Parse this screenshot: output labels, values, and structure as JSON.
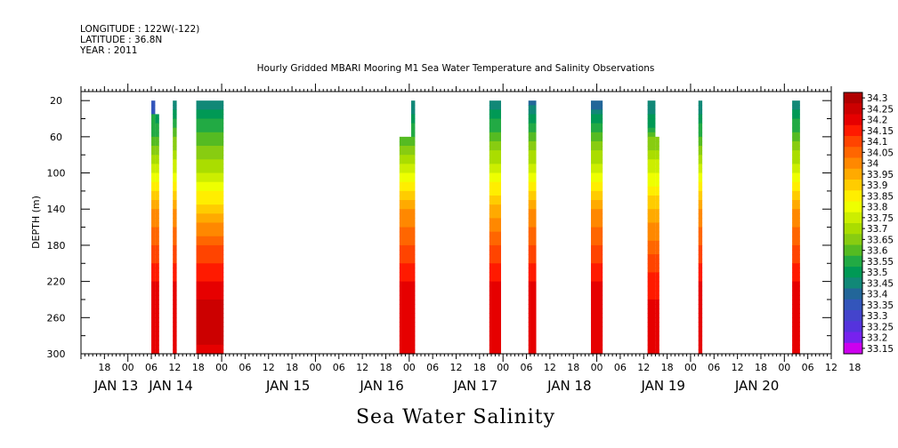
{
  "header": {
    "longitude": "LONGITUDE : 122W(-122)",
    "latitude": "LATITUDE : 36.8N",
    "year": "YEAR : 2011"
  },
  "chart_data": {
    "type": "heatmap",
    "title": "Hourly Gridded MBARI Mooring M1 Sea Water Temperature and Salinity Observations",
    "ylabel": "DEPTH (m)",
    "footer": "Sea Water Salinity",
    "x_range_hours": [
      -6,
      186
    ],
    "ylim": [
      300,
      10
    ],
    "y_ticks": [
      20,
      60,
      100,
      140,
      180,
      220,
      260,
      300
    ],
    "x_tick_labels": [
      {
        "h": 0,
        "label": "18"
      },
      {
        "h": 6,
        "label": "00"
      },
      {
        "h": 12,
        "label": "06"
      },
      {
        "h": 18,
        "label": "12"
      },
      {
        "h": 24,
        "label": "18"
      },
      {
        "h": 30,
        "label": "00"
      },
      {
        "h": 36,
        "label": "06"
      },
      {
        "h": 42,
        "label": "12"
      },
      {
        "h": 48,
        "label": "18"
      },
      {
        "h": 54,
        "label": "00"
      },
      {
        "h": 60,
        "label": "06"
      },
      {
        "h": 66,
        "label": "12"
      },
      {
        "h": 72,
        "label": "18"
      },
      {
        "h": 78,
        "label": "00"
      },
      {
        "h": 84,
        "label": "06"
      },
      {
        "h": 90,
        "label": "12"
      },
      {
        "h": 96,
        "label": "18"
      },
      {
        "h": 102,
        "label": "00"
      },
      {
        "h": 108,
        "label": "06"
      },
      {
        "h": 114,
        "label": "12"
      },
      {
        "h": 120,
        "label": "18"
      },
      {
        "h": 126,
        "label": "00"
      },
      {
        "h": 132,
        "label": "06"
      },
      {
        "h": 138,
        "label": "12"
      },
      {
        "h": 144,
        "label": "18"
      },
      {
        "h": 150,
        "label": "00"
      },
      {
        "h": 156,
        "label": "06"
      },
      {
        "h": 162,
        "label": "12"
      },
      {
        "h": 168,
        "label": "18"
      },
      {
        "h": 174,
        "label": "00"
      },
      {
        "h": 180,
        "label": "06"
      },
      {
        "h": 186,
        "label": "12"
      },
      {
        "h": 192,
        "label": "18"
      }
    ],
    "date_labels": [
      {
        "h": 3,
        "label": "JAN 13"
      },
      {
        "h": 17,
        "label": "JAN 14"
      },
      {
        "h": 47,
        "label": "JAN 15"
      },
      {
        "h": 71,
        "label": "JAN 16"
      },
      {
        "h": 95,
        "label": "JAN 17"
      },
      {
        "h": 119,
        "label": "JAN 18"
      },
      {
        "h": 143,
        "label": "JAN 19"
      },
      {
        "h": 167,
        "label": "JAN 20"
      }
    ],
    "legend_levels": [
      "34.3",
      "34.25",
      "34.2",
      "34.15",
      "34.1",
      "34.05",
      "34",
      "33.95",
      "33.9",
      "33.85",
      "33.8",
      "33.75",
      "33.7",
      "33.65",
      "33.6",
      "33.55",
      "33.5",
      "33.45",
      "33.4",
      "33.35",
      "33.3",
      "33.25",
      "33.2",
      "33.15"
    ],
    "legend_colors": [
      "#b00000",
      "#cc0000",
      "#e60000",
      "#ff1a00",
      "#ff4400",
      "#ff6600",
      "#ff8800",
      "#ffaa00",
      "#ffcc00",
      "#ffee00",
      "#eeff00",
      "#ccee00",
      "#aadd00",
      "#88cc11",
      "#55bb22",
      "#22aa44",
      "#009955",
      "#118877",
      "#226699",
      "#3355bb",
      "#4444cc",
      "#5533dd",
      "#7722ee",
      "#cc00ee"
    ],
    "segments": [
      {
        "start": 12.0,
        "end": 13.0,
        "top": 20,
        "profile": [
          [
            20,
            33.33
          ],
          [
            35,
            33.33
          ],
          [
            36,
            33.5
          ],
          [
            60,
            33.55
          ],
          [
            100,
            33.75
          ],
          [
            140,
            33.95
          ],
          [
            180,
            34.05
          ],
          [
            220,
            34.15
          ],
          [
            260,
            34.2
          ],
          [
            300,
            34.15
          ]
        ]
      },
      {
        "start": 13.0,
        "end": 14.0,
        "top": 35,
        "profile": [
          [
            35,
            33.45
          ],
          [
            60,
            33.55
          ],
          [
            100,
            33.75
          ],
          [
            140,
            33.95
          ],
          [
            180,
            34.05
          ],
          [
            220,
            34.15
          ],
          [
            260,
            34.2
          ],
          [
            300,
            34.15
          ]
        ]
      },
      {
        "start": 17.5,
        "end": 18.5,
        "top": 20,
        "profile": [
          [
            20,
            33.4
          ],
          [
            60,
            33.6
          ],
          [
            100,
            33.75
          ],
          [
            140,
            33.95
          ],
          [
            180,
            34.05
          ],
          [
            220,
            34.15
          ],
          [
            260,
            34.2
          ],
          [
            300,
            34.15
          ]
        ]
      },
      {
        "start": 23.5,
        "end": 30.5,
        "top": 20,
        "profile": [
          [
            20,
            33.4
          ],
          [
            40,
            33.5
          ],
          [
            70,
            33.6
          ],
          [
            100,
            33.7
          ],
          [
            140,
            33.88
          ],
          [
            180,
            34.05
          ],
          [
            220,
            34.15
          ],
          [
            250,
            34.22
          ],
          [
            280,
            34.22
          ],
          [
            300,
            34.17
          ]
        ]
      },
      {
        "start": 75.5,
        "end": 78.5,
        "top": 60,
        "profile": [
          [
            60,
            33.55
          ],
          [
            100,
            33.75
          ],
          [
            140,
            33.95
          ],
          [
            180,
            34.05
          ],
          [
            220,
            34.15
          ],
          [
            260,
            34.18
          ],
          [
            300,
            34.15
          ]
        ]
      },
      {
        "start": 78.5,
        "end": 79.5,
        "top": 20,
        "profile": [
          [
            20,
            33.4
          ],
          [
            60,
            33.55
          ],
          [
            100,
            33.75
          ],
          [
            140,
            33.95
          ],
          [
            180,
            34.05
          ],
          [
            220,
            34.15
          ],
          [
            260,
            34.18
          ],
          [
            300,
            34.15
          ]
        ]
      },
      {
        "start": 98.5,
        "end": 101.5,
        "top": 20,
        "profile": [
          [
            20,
            33.4
          ],
          [
            60,
            33.58
          ],
          [
            100,
            33.75
          ],
          [
            140,
            33.92
          ],
          [
            180,
            34.05
          ],
          [
            220,
            34.15
          ],
          [
            260,
            34.2
          ],
          [
            300,
            34.15
          ]
        ]
      },
      {
        "start": 108.5,
        "end": 110.5,
        "top": 20,
        "profile": [
          [
            20,
            33.38
          ],
          [
            60,
            33.58
          ],
          [
            100,
            33.75
          ],
          [
            140,
            33.95
          ],
          [
            180,
            34.05
          ],
          [
            220,
            34.15
          ],
          [
            260,
            34.2
          ],
          [
            300,
            34.15
          ]
        ]
      },
      {
        "start": 124.5,
        "end": 127.5,
        "top": 20,
        "profile": [
          [
            20,
            33.35
          ],
          [
            60,
            33.58
          ],
          [
            100,
            33.75
          ],
          [
            140,
            33.95
          ],
          [
            180,
            34.05
          ],
          [
            220,
            34.15
          ],
          [
            260,
            34.2
          ],
          [
            300,
            34.15
          ]
        ]
      },
      {
        "start": 139.0,
        "end": 141.0,
        "top": 20,
        "profile": [
          [
            20,
            33.4
          ],
          [
            50,
            33.5
          ],
          [
            60,
            33.6
          ],
          [
            100,
            33.75
          ],
          [
            140,
            33.9
          ],
          [
            180,
            34.02
          ],
          [
            220,
            34.12
          ],
          [
            260,
            34.18
          ],
          [
            300,
            34.15
          ]
        ]
      },
      {
        "start": 141.0,
        "end": 142.0,
        "top": 60,
        "profile": [
          [
            60,
            33.6
          ],
          [
            100,
            33.75
          ],
          [
            140,
            33.9
          ],
          [
            180,
            34.02
          ],
          [
            220,
            34.12
          ],
          [
            260,
            34.18
          ],
          [
            300,
            34.15
          ]
        ]
      },
      {
        "start": 152.0,
        "end": 153.0,
        "top": 20,
        "profile": [
          [
            20,
            33.4
          ],
          [
            60,
            33.55
          ],
          [
            100,
            33.75
          ],
          [
            140,
            33.95
          ],
          [
            180,
            34.05
          ],
          [
            220,
            34.15
          ],
          [
            260,
            34.2
          ],
          [
            300,
            34.15
          ]
        ]
      },
      {
        "start": 176.0,
        "end": 178.0,
        "top": 20,
        "profile": [
          [
            20,
            33.4
          ],
          [
            60,
            33.58
          ],
          [
            100,
            33.75
          ],
          [
            140,
            33.95
          ],
          [
            180,
            34.05
          ],
          [
            220,
            34.15
          ],
          [
            260,
            34.2
          ],
          [
            300,
            34.15
          ]
        ]
      }
    ]
  }
}
